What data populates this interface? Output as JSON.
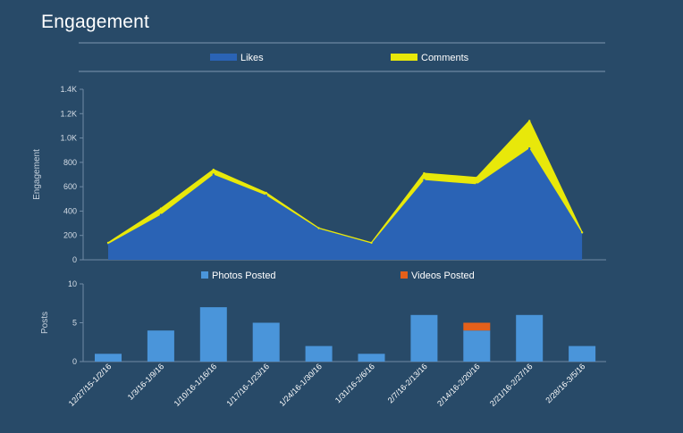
{
  "title": "Engagement",
  "chart_data": [
    {
      "type": "area",
      "stacked": true,
      "categories": [
        "12/27/15-1/2/16",
        "1/3/16-1/9/16",
        "1/10/16-1/16/16",
        "1/17/16-1/23/16",
        "1/24/16-1/30/16",
        "1/31/16-2/6/16",
        "2/7/16-2/13/16",
        "2/14/16-2/20/16",
        "2/21/16-2/27/16",
        "2/28/16-3/5/16"
      ],
      "series": [
        {
          "name": "Likes",
          "color": "#2a63b5",
          "values": [
            130,
            370,
            700,
            530,
            255,
            135,
            655,
            620,
            915,
            220
          ]
        },
        {
          "name": "Comments",
          "color": "#e8e80a",
          "values": [
            10,
            50,
            40,
            20,
            5,
            5,
            55,
            55,
            225,
            5
          ]
        }
      ],
      "ylabel": "Engagement",
      "yticks": [
        "0",
        "200",
        "400",
        "600",
        "800",
        "1.0K",
        "1.2K",
        "1.4K"
      ],
      "ylim": [
        0,
        1400
      ],
      "legend": "top"
    },
    {
      "type": "bar",
      "stacked": true,
      "categories": [
        "12/27/15-1/2/16",
        "1/3/16-1/9/16",
        "1/10/16-1/16/16",
        "1/17/16-1/23/16",
        "1/24/16-1/30/16",
        "1/31/16-2/6/16",
        "2/7/16-2/13/16",
        "2/14/16-2/20/16",
        "2/21/16-2/27/16",
        "2/28/16-3/5/16"
      ],
      "series": [
        {
          "name": "Photos Posted",
          "color": "#4a95da",
          "values": [
            1,
            4,
            7,
            5,
            2,
            1,
            6,
            4,
            6,
            2
          ]
        },
        {
          "name": "Videos Posted",
          "color": "#e4601a",
          "values": [
            0,
            0,
            0,
            0,
            0,
            0,
            0,
            1,
            0,
            0
          ]
        }
      ],
      "ylabel": "Posts",
      "yticks": [
        "0",
        "5",
        "10"
      ],
      "ylim": [
        0,
        10
      ],
      "legend": "top"
    }
  ]
}
